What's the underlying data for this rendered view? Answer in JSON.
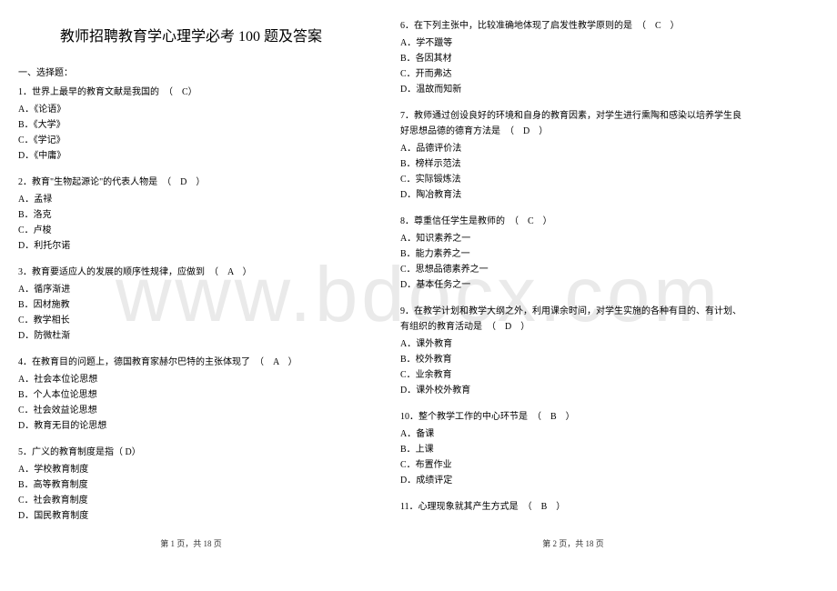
{
  "watermark": "www.bdocx.com",
  "title": "教师招聘教育学心理学必考 100 题及答案",
  "section_head": "一、选择题：",
  "left": {
    "q1": {
      "stem": "1．世界上最早的教育文献是我国的　（　C）",
      "opts": [
        "A．《论语》",
        "B．《大学》",
        "C．《学记》",
        "D．《中庸》"
      ]
    },
    "q2": {
      "stem": "2．教育\"生物起源论\"的代表人物是　（　D　）",
      "opts": [
        "A．孟禄",
        "B．洛克",
        "C．卢梭",
        "D．利托尔诺"
      ]
    },
    "q3": {
      "stem": "3．教育要适应人的发展的顺序性规律，应做到　（　A　）",
      "opts": [
        "A．循序渐进",
        "B．因材施教",
        "C．教学相长",
        "D．防微杜渐"
      ]
    },
    "q4": {
      "stem": "4．在教育目的问题上，德国教育家赫尔巴特的主张体现了　（　A　）",
      "opts": [
        "A．社会本位论思想",
        "B．个人本位论思想",
        "C．社会效益论思想",
        "D．教育无目的论思想"
      ]
    },
    "q5": {
      "stem": "5．广义的教育制度是指（ D）",
      "opts": [
        "A．学校教育制度",
        "B．高等教育制度",
        "C．社会教育制度",
        "D．国民教育制度"
      ]
    }
  },
  "right": {
    "q6": {
      "stem": "6．在下列主张中，比较准确地体现了启发性教学原则的是　（　C　）",
      "opts": [
        "A．学不躐等",
        "B．各因其材",
        "C．开而弗达",
        "D．温故而知新"
      ]
    },
    "q7": {
      "stem": "7．教师通过创设良好的环境和自身的教育因素，对学生进行熏陶和感染以培养学生良好思想品德的德育方法是　（　D　）",
      "opts": [
        "A．品德评价法",
        "B．榜样示范法",
        "C．实际锻炼法",
        "D．陶冶教育法"
      ]
    },
    "q8": {
      "stem": "8．尊重信任学生是教师的　（　C　）",
      "opts": [
        "A．知识素养之一",
        "B．能力素养之一",
        "C．思想品德素养之一",
        "D．基本任务之一"
      ]
    },
    "q9": {
      "stem": "9．在教学计划和教学大纲之外，利用课余时间，对学生实施的各种有目的、有计划、有组织的教育活动是　（　D　）",
      "opts": [
        "A．课外教育",
        "B．校外教育",
        "C．业余教育",
        "D．课外校外教育"
      ]
    },
    "q10": {
      "stem": "10．整个教学工作的中心环节是　（　B　）",
      "opts": [
        "A．备课",
        "B．上课",
        "C．布置作业",
        "D．成绩评定"
      ]
    },
    "q11": {
      "stem": "11．心理现象就其产生方式是　（　B　）"
    }
  },
  "footer_left": "第 1 页，共 18 页",
  "footer_right": "第 2 页，共 18 页"
}
